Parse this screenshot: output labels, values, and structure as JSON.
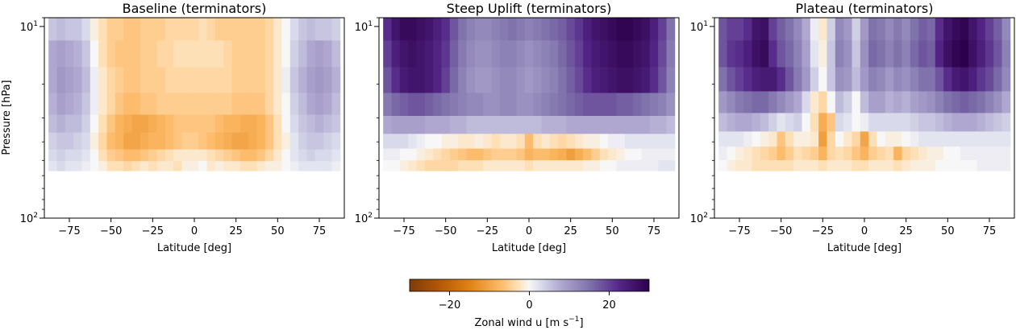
{
  "chart_data": {
    "type": "heatmap",
    "colormap": "PuOr (orange negative, white zero, purple positive)",
    "colors": {
      "negative": "#8c4a06",
      "zero": "#f4f2f0",
      "positive": "#2d004b"
    },
    "ylabel": "Pressure [hPa]",
    "y_axis_scale": "log (inverted)",
    "ylim": [
      100,
      9
    ],
    "y_data_range": [
      10,
      55
    ],
    "y_major_ticks": [
      {
        "value": 10,
        "base": "10",
        "exp": "1"
      },
      {
        "value": 100,
        "base": "10",
        "exp": "2"
      }
    ],
    "xlabel": "Latitude [deg]",
    "xlim": [
      -90,
      90
    ],
    "x_ticks": [
      {
        "value": -75,
        "label": "−75"
      },
      {
        "value": -50,
        "label": "−50"
      },
      {
        "value": -25,
        "label": "−25"
      },
      {
        "value": 0,
        "label": "0"
      },
      {
        "value": 25,
        "label": "25"
      },
      {
        "value": 50,
        "label": "50"
      },
      {
        "value": 75,
        "label": "75"
      }
    ],
    "panel_latitudes": [
      -85,
      -80,
      -75,
      -70,
      -65,
      -60,
      -55,
      -50,
      -45,
      -40,
      -35,
      -30,
      -25,
      -20,
      -15,
      -10,
      -5,
      0,
      5,
      10,
      15,
      20,
      25,
      30,
      35,
      40,
      45,
      50,
      55,
      60,
      65,
      70,
      75,
      80,
      85
    ],
    "panels": [
      {
        "title": "Baseline (terminators)",
        "levels_hPa": [
          10,
          14,
          19,
          26,
          32,
          40,
          48,
          53
        ],
        "rows_m_s": [
          [
            5,
            6,
            5,
            5,
            3,
            -1,
            -3,
            -5,
            -5,
            -6,
            -6,
            -5,
            -5,
            -5,
            -4,
            -4,
            -4,
            -4,
            -3,
            -4,
            -5,
            -5,
            -5,
            -5,
            -5,
            -5,
            -4,
            -2,
            0,
            3,
            5,
            6,
            5,
            5,
            4
          ],
          [
            8,
            9,
            8,
            7,
            5,
            0,
            -3,
            -5,
            -6,
            -6,
            -6,
            -5,
            -5,
            -4,
            -4,
            -3,
            -3,
            -3,
            -3,
            -3,
            -3,
            -4,
            -5,
            -5,
            -5,
            -5,
            -4,
            -2,
            0,
            4,
            6,
            8,
            9,
            8,
            6
          ],
          [
            8,
            10,
            9,
            8,
            6,
            1,
            -2,
            -4,
            -5,
            -6,
            -6,
            -5,
            -5,
            -5,
            -4,
            -4,
            -4,
            -4,
            -4,
            -4,
            -4,
            -4,
            -5,
            -5,
            -5,
            -5,
            -4,
            -2,
            1,
            5,
            7,
            9,
            10,
            9,
            7
          ],
          [
            7,
            9,
            8,
            7,
            5,
            1,
            -2,
            -4,
            -6,
            -7,
            -7,
            -6,
            -6,
            -5,
            -5,
            -5,
            -5,
            -5,
            -5,
            -5,
            -5,
            -5,
            -6,
            -6,
            -6,
            -6,
            -4,
            -2,
            0,
            4,
            6,
            8,
            9,
            8,
            6
          ],
          [
            6,
            7,
            6,
            6,
            4,
            0,
            -3,
            -6,
            -8,
            -9,
            -10,
            -10,
            -9,
            -8,
            -7,
            -6,
            -6,
            -6,
            -6,
            -6,
            -7,
            -8,
            -8,
            -9,
            -9,
            -8,
            -6,
            -3,
            0,
            3,
            5,
            6,
            7,
            6,
            5
          ],
          [
            4,
            5,
            5,
            4,
            3,
            -1,
            -4,
            -7,
            -8,
            -10,
            -10,
            -9,
            -8,
            -8,
            -7,
            -6,
            -5,
            -5,
            -6,
            -7,
            -8,
            -9,
            -10,
            -10,
            -9,
            -8,
            -6,
            -3,
            -1,
            2,
            4,
            5,
            5,
            4,
            3
          ],
          [
            3,
            4,
            3,
            3,
            2,
            0,
            -3,
            -5,
            -6,
            -7,
            -7,
            -6,
            -5,
            -4,
            -3,
            -2,
            -2,
            -2,
            -2,
            -3,
            -4,
            -5,
            -6,
            -7,
            -7,
            -6,
            -4,
            -2,
            0,
            2,
            3,
            4,
            3,
            3,
            2
          ],
          [
            2,
            3,
            2,
            2,
            1,
            0,
            -1,
            -3,
            -3,
            -4,
            -3,
            -2,
            -3,
            -2,
            -2,
            -3,
            -1,
            -1,
            0,
            -2,
            -1,
            -2,
            -2,
            -3,
            -3,
            -2,
            -1,
            -1,
            0,
            1,
            2,
            2,
            2,
            2,
            1
          ]
        ]
      },
      {
        "title": "Steep Uplift (terminators)",
        "levels_hPa": [
          10,
          14,
          19,
          26,
          33,
          40,
          47,
          53
        ],
        "rows_m_s": [
          [
            22,
            26,
            28,
            28,
            27,
            26,
            24,
            22,
            18,
            15,
            13,
            12,
            12,
            13,
            14,
            15,
            14,
            13,
            14,
            15,
            16,
            17,
            19,
            21,
            24,
            26,
            27,
            28,
            29,
            29,
            28,
            27,
            24,
            20,
            15
          ],
          [
            20,
            24,
            26,
            27,
            26,
            25,
            23,
            21,
            17,
            14,
            12,
            11,
            11,
            12,
            13,
            13,
            12,
            11,
            12,
            13,
            14,
            16,
            18,
            20,
            23,
            25,
            26,
            27,
            28,
            28,
            27,
            26,
            23,
            19,
            14
          ],
          [
            18,
            22,
            25,
            26,
            26,
            25,
            23,
            20,
            16,
            13,
            11,
            10,
            10,
            11,
            12,
            12,
            11,
            10,
            11,
            12,
            13,
            15,
            17,
            19,
            22,
            24,
            25,
            26,
            27,
            27,
            26,
            25,
            22,
            18,
            13
          ],
          [
            14,
            16,
            17,
            18,
            18,
            17,
            16,
            15,
            14,
            13,
            12,
            12,
            11,
            11,
            12,
            12,
            11,
            11,
            12,
            13,
            14,
            15,
            16,
            17,
            18,
            18,
            18,
            18,
            17,
            17,
            16,
            15,
            14,
            13,
            11
          ],
          [
            8,
            9,
            9,
            9,
            9,
            8,
            8,
            8,
            7,
            7,
            6,
            6,
            6,
            6,
            6,
            6,
            6,
            6,
            6,
            7,
            7,
            7,
            8,
            8,
            8,
            8,
            8,
            8,
            8,
            8,
            8,
            8,
            7,
            7,
            6
          ],
          [
            3,
            3,
            3,
            2,
            1,
            0,
            0,
            -1,
            -1,
            -2,
            -2,
            -1,
            -2,
            -3,
            -2,
            -2,
            -3,
            -7,
            -3,
            -2,
            -3,
            -4,
            -3,
            -2,
            -1,
            -1,
            0,
            1,
            1,
            2,
            2,
            2,
            2,
            2,
            2
          ],
          [
            1,
            1,
            0,
            0,
            -1,
            -2,
            -3,
            -4,
            -5,
            -6,
            -7,
            -7,
            -6,
            -5,
            -5,
            -5,
            -6,
            -8,
            -7,
            -7,
            -8,
            -9,
            -11,
            -9,
            -7,
            -5,
            -3,
            -2,
            -1,
            0,
            0,
            1,
            1,
            1,
            1
          ],
          [
            0,
            0,
            -1,
            -2,
            -3,
            -4,
            -4,
            -4,
            -4,
            -3,
            -3,
            -3,
            -2,
            -2,
            -2,
            -2,
            -2,
            -3,
            -2,
            -2,
            -2,
            -2,
            -2,
            -2,
            -1,
            -1,
            0,
            0,
            1,
            1,
            1,
            1,
            1,
            2,
            2
          ]
        ]
      },
      {
        "title": "Plateau (terminators)",
        "levels_hPa": [
          10,
          14,
          19,
          25,
          32,
          39,
          46,
          54
        ],
        "rows_m_s": [
          [
            18,
            20,
            20,
            22,
            26,
            27,
            20,
            17,
            15,
            12,
            8,
            1,
            -2,
            4,
            12,
            10,
            4,
            10,
            15,
            14,
            12,
            14,
            12,
            15,
            17,
            16,
            22,
            26,
            28,
            29,
            26,
            23,
            20,
            17,
            12
          ],
          [
            18,
            21,
            22,
            24,
            27,
            28,
            22,
            18,
            16,
            13,
            9,
            2,
            -1,
            5,
            13,
            11,
            5,
            11,
            16,
            15,
            13,
            15,
            13,
            16,
            18,
            17,
            23,
            27,
            29,
            30,
            27,
            24,
            21,
            18,
            13
          ],
          [
            15,
            18,
            20,
            22,
            24,
            25,
            25,
            22,
            18,
            14,
            10,
            4,
            0,
            5,
            11,
            10,
            6,
            10,
            13,
            12,
            10,
            12,
            11,
            13,
            15,
            15,
            18,
            22,
            25,
            26,
            24,
            21,
            19,
            16,
            12
          ],
          [
            10,
            12,
            14,
            15,
            16,
            16,
            14,
            12,
            10,
            8,
            3,
            -2,
            -4,
            0,
            6,
            4,
            0,
            6,
            9,
            9,
            7,
            8,
            7,
            9,
            10,
            11,
            13,
            15,
            16,
            17,
            16,
            15,
            13,
            11,
            8
          ],
          [
            6,
            7,
            8,
            8,
            7,
            6,
            4,
            2,
            3,
            4,
            0,
            -3,
            -9,
            -6,
            3,
            2,
            0,
            1,
            3,
            3,
            3,
            3,
            3,
            4,
            5,
            5,
            6,
            7,
            8,
            8,
            8,
            7,
            6,
            5,
            4
          ],
          [
            2,
            2,
            2,
            1,
            0,
            -1,
            -2,
            -6,
            -3,
            -1,
            -1,
            -2,
            -11,
            -4,
            0,
            -2,
            -4,
            -10,
            -3,
            0,
            -1,
            -1,
            0,
            1,
            2,
            2,
            2,
            2,
            2,
            2,
            2,
            2,
            2,
            2,
            2
          ],
          [
            1,
            0,
            -1,
            -2,
            -3,
            -4,
            -5,
            -7,
            -5,
            -3,
            -4,
            -5,
            -8,
            -4,
            -3,
            -4,
            -6,
            -8,
            -5,
            -4,
            -3,
            -8,
            -4,
            -3,
            -2,
            -1,
            -1,
            0,
            0,
            1,
            1,
            1,
            1,
            1,
            1
          ],
          [
            0,
            -1,
            -2,
            -2,
            -3,
            -3,
            -3,
            -3,
            -3,
            -2,
            -2,
            -2,
            -3,
            -2,
            -2,
            -2,
            -3,
            -3,
            -2,
            -2,
            -2,
            -3,
            -2,
            -1,
            -1,
            -1,
            0,
            0,
            0,
            0,
            0,
            1,
            1,
            1,
            1
          ]
        ]
      }
    ],
    "colorbar": {
      "label_main": "Zonal wind u [m s",
      "label_exp": "−1",
      "label_close": "]",
      "range": [
        -30,
        30
      ],
      "ticks": [
        {
          "value": -20,
          "label": "−20"
        },
        {
          "value": 0,
          "label": "0"
        },
        {
          "value": 20,
          "label": "20"
        }
      ]
    }
  }
}
